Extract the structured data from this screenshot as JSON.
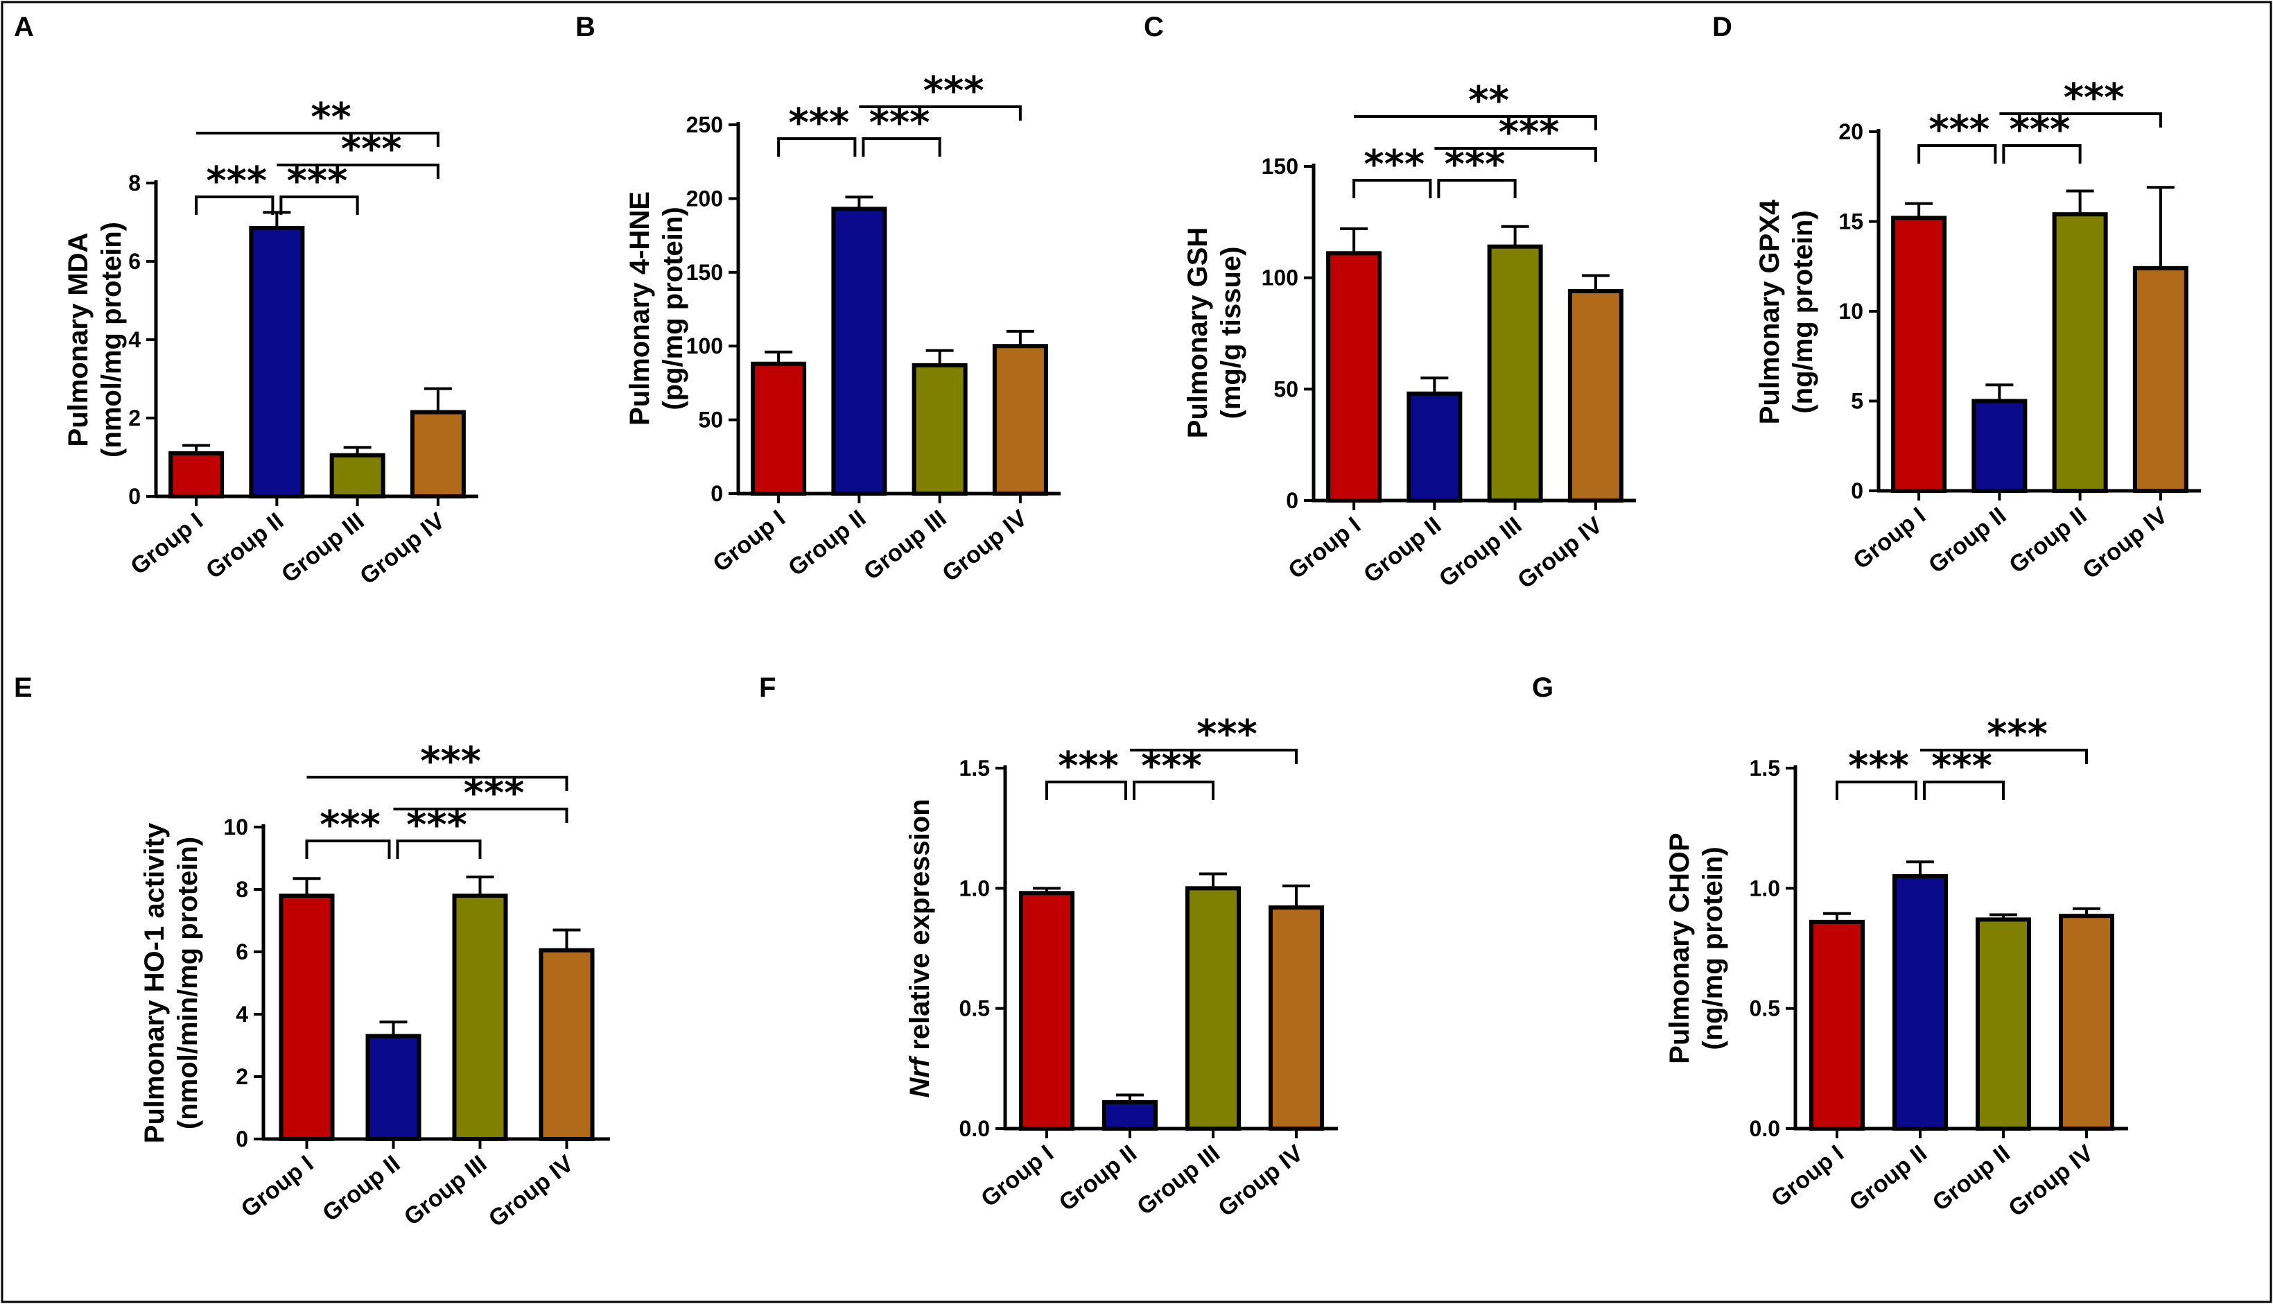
{
  "colors": {
    "group1": "#c00000",
    "group2": "#0a0a8c",
    "group3": "#808000",
    "group4": "#b06a1a"
  },
  "chart_data": [
    {
      "panel": "A",
      "type": "bar",
      "ylabel_lines": [
        "Pulmonary MDA",
        "(nmol/mg protein)"
      ],
      "categories": [
        "Group I",
        "Group II",
        "Group III",
        "Group IV"
      ],
      "values": [
        1.1,
        6.85,
        1.05,
        2.15
      ],
      "errors": [
        0.2,
        0.4,
        0.2,
        0.6
      ],
      "ylim": [
        0,
        8
      ],
      "yticks": [
        0,
        2,
        4,
        6,
        8
      ],
      "significance": [
        {
          "from": 0,
          "to": 1,
          "label": "***",
          "style": "bracket"
        },
        {
          "from": 1,
          "to": 2,
          "label": "***",
          "style": "bracket"
        },
        {
          "from": 1,
          "to": 3,
          "label": "***",
          "style": "line"
        },
        {
          "from": 0,
          "to": 3,
          "label": "**",
          "style": "line"
        }
      ]
    },
    {
      "panel": "B",
      "type": "bar",
      "ylabel_lines": [
        "Pulmonary 4-HNE",
        "(pg/mg protein)"
      ],
      "categories": [
        "Group I",
        "Group II",
        "Group III",
        "Group IV"
      ],
      "values": [
        88,
        193,
        87,
        100
      ],
      "errors": [
        8,
        8,
        10,
        10
      ],
      "ylim": [
        0,
        250
      ],
      "yticks": [
        0,
        50,
        100,
        150,
        200,
        250
      ],
      "significance": [
        {
          "from": 0,
          "to": 1,
          "label": "***",
          "style": "bracket"
        },
        {
          "from": 1,
          "to": 2,
          "label": "***",
          "style": "bracket"
        },
        {
          "from": 1,
          "to": 3,
          "label": "***",
          "style": "line"
        }
      ]
    },
    {
      "panel": "C",
      "type": "bar",
      "ylabel_lines": [
        "Pulmonary GSH",
        "(mg/g tissue)"
      ],
      "categories": [
        "Group I",
        "Group II",
        "Group III",
        "Group IV"
      ],
      "values": [
        111,
        48,
        114,
        94
      ],
      "errors": [
        11,
        7,
        9,
        7
      ],
      "ylim": [
        0,
        150
      ],
      "yticks": [
        0,
        50,
        100,
        150
      ],
      "significance": [
        {
          "from": 0,
          "to": 1,
          "label": "***",
          "style": "bracket"
        },
        {
          "from": 1,
          "to": 2,
          "label": "***",
          "style": "bracket"
        },
        {
          "from": 1,
          "to": 3,
          "label": "***",
          "style": "line"
        },
        {
          "from": 0,
          "to": 3,
          "label": "**",
          "style": "line"
        }
      ]
    },
    {
      "panel": "D",
      "type": "bar",
      "ylabel_lines": [
        "Pulmonary GPX4",
        "(ng/mg protein)"
      ],
      "categories": [
        "Group I",
        "Group II",
        "Group II",
        "Group IV"
      ],
      "values": [
        15.2,
        5.0,
        15.4,
        12.4
      ],
      "errors": [
        0.8,
        0.9,
        1.3,
        4.5
      ],
      "ylim": [
        0,
        20
      ],
      "yticks": [
        0,
        5,
        10,
        15,
        20
      ],
      "significance": [
        {
          "from": 0,
          "to": 1,
          "label": "***",
          "style": "bracket"
        },
        {
          "from": 1,
          "to": 2,
          "label": "***",
          "style": "bracket"
        },
        {
          "from": 1,
          "to": 3,
          "label": "***",
          "style": "line"
        }
      ]
    },
    {
      "panel": "E",
      "type": "bar",
      "ylabel_lines": [
        "Pulmonary HO-1 activity",
        "(nmol/min/mg protein)"
      ],
      "categories": [
        "Group I",
        "Group II",
        "Group III",
        "Group IV"
      ],
      "values": [
        7.8,
        3.3,
        7.8,
        6.05
      ],
      "errors": [
        0.55,
        0.45,
        0.6,
        0.65
      ],
      "ylim": [
        0,
        10
      ],
      "yticks": [
        0,
        2,
        4,
        6,
        8,
        10
      ],
      "significance": [
        {
          "from": 0,
          "to": 1,
          "label": "***",
          "style": "bracket"
        },
        {
          "from": 1,
          "to": 2,
          "label": "***",
          "style": "bracket"
        },
        {
          "from": 1,
          "to": 3,
          "label": "***",
          "style": "line"
        },
        {
          "from": 0,
          "to": 3,
          "label": "***",
          "style": "line"
        }
      ]
    },
    {
      "panel": "F",
      "type": "bar",
      "ylabel_lines": [
        "Nrf relative expression"
      ],
      "ylabel_italic_prefix": "Nrf",
      "ylabel_rest": " relative expression",
      "categories": [
        "Group I",
        "Group II",
        "Group III",
        "Group IV"
      ],
      "values": [
        0.98,
        0.11,
        1.0,
        0.92
      ],
      "errors": [
        0.02,
        0.03,
        0.06,
        0.09
      ],
      "ylim": [
        0,
        1.5
      ],
      "yticks": [
        "0.0",
        "0.5",
        "1.0",
        "1.5"
      ],
      "significance": [
        {
          "from": 0,
          "to": 1,
          "label": "***",
          "style": "bracket"
        },
        {
          "from": 1,
          "to": 2,
          "label": "***",
          "style": "bracket"
        },
        {
          "from": 1,
          "to": 3,
          "label": "***",
          "style": "line"
        }
      ]
    },
    {
      "panel": "G",
      "type": "bar",
      "ylabel_lines": [
        "Pulmonary CHOP",
        "(ng/mg protein)"
      ],
      "categories": [
        "Group I",
        "Group II",
        "Group II",
        "Group IV"
      ],
      "values": [
        0.86,
        1.05,
        0.87,
        0.885
      ],
      "errors": [
        0.035,
        0.06,
        0.02,
        0.03
      ],
      "ylim": [
        0,
        1.5
      ],
      "yticks": [
        "0.0",
        "0.5",
        "1.0",
        "1.5"
      ],
      "significance": [
        {
          "from": 0,
          "to": 1,
          "label": "***",
          "style": "bracket"
        },
        {
          "from": 1,
          "to": 2,
          "label": "***",
          "style": "bracket"
        },
        {
          "from": 1,
          "to": 3,
          "label": "***",
          "style": "line"
        }
      ]
    }
  ]
}
